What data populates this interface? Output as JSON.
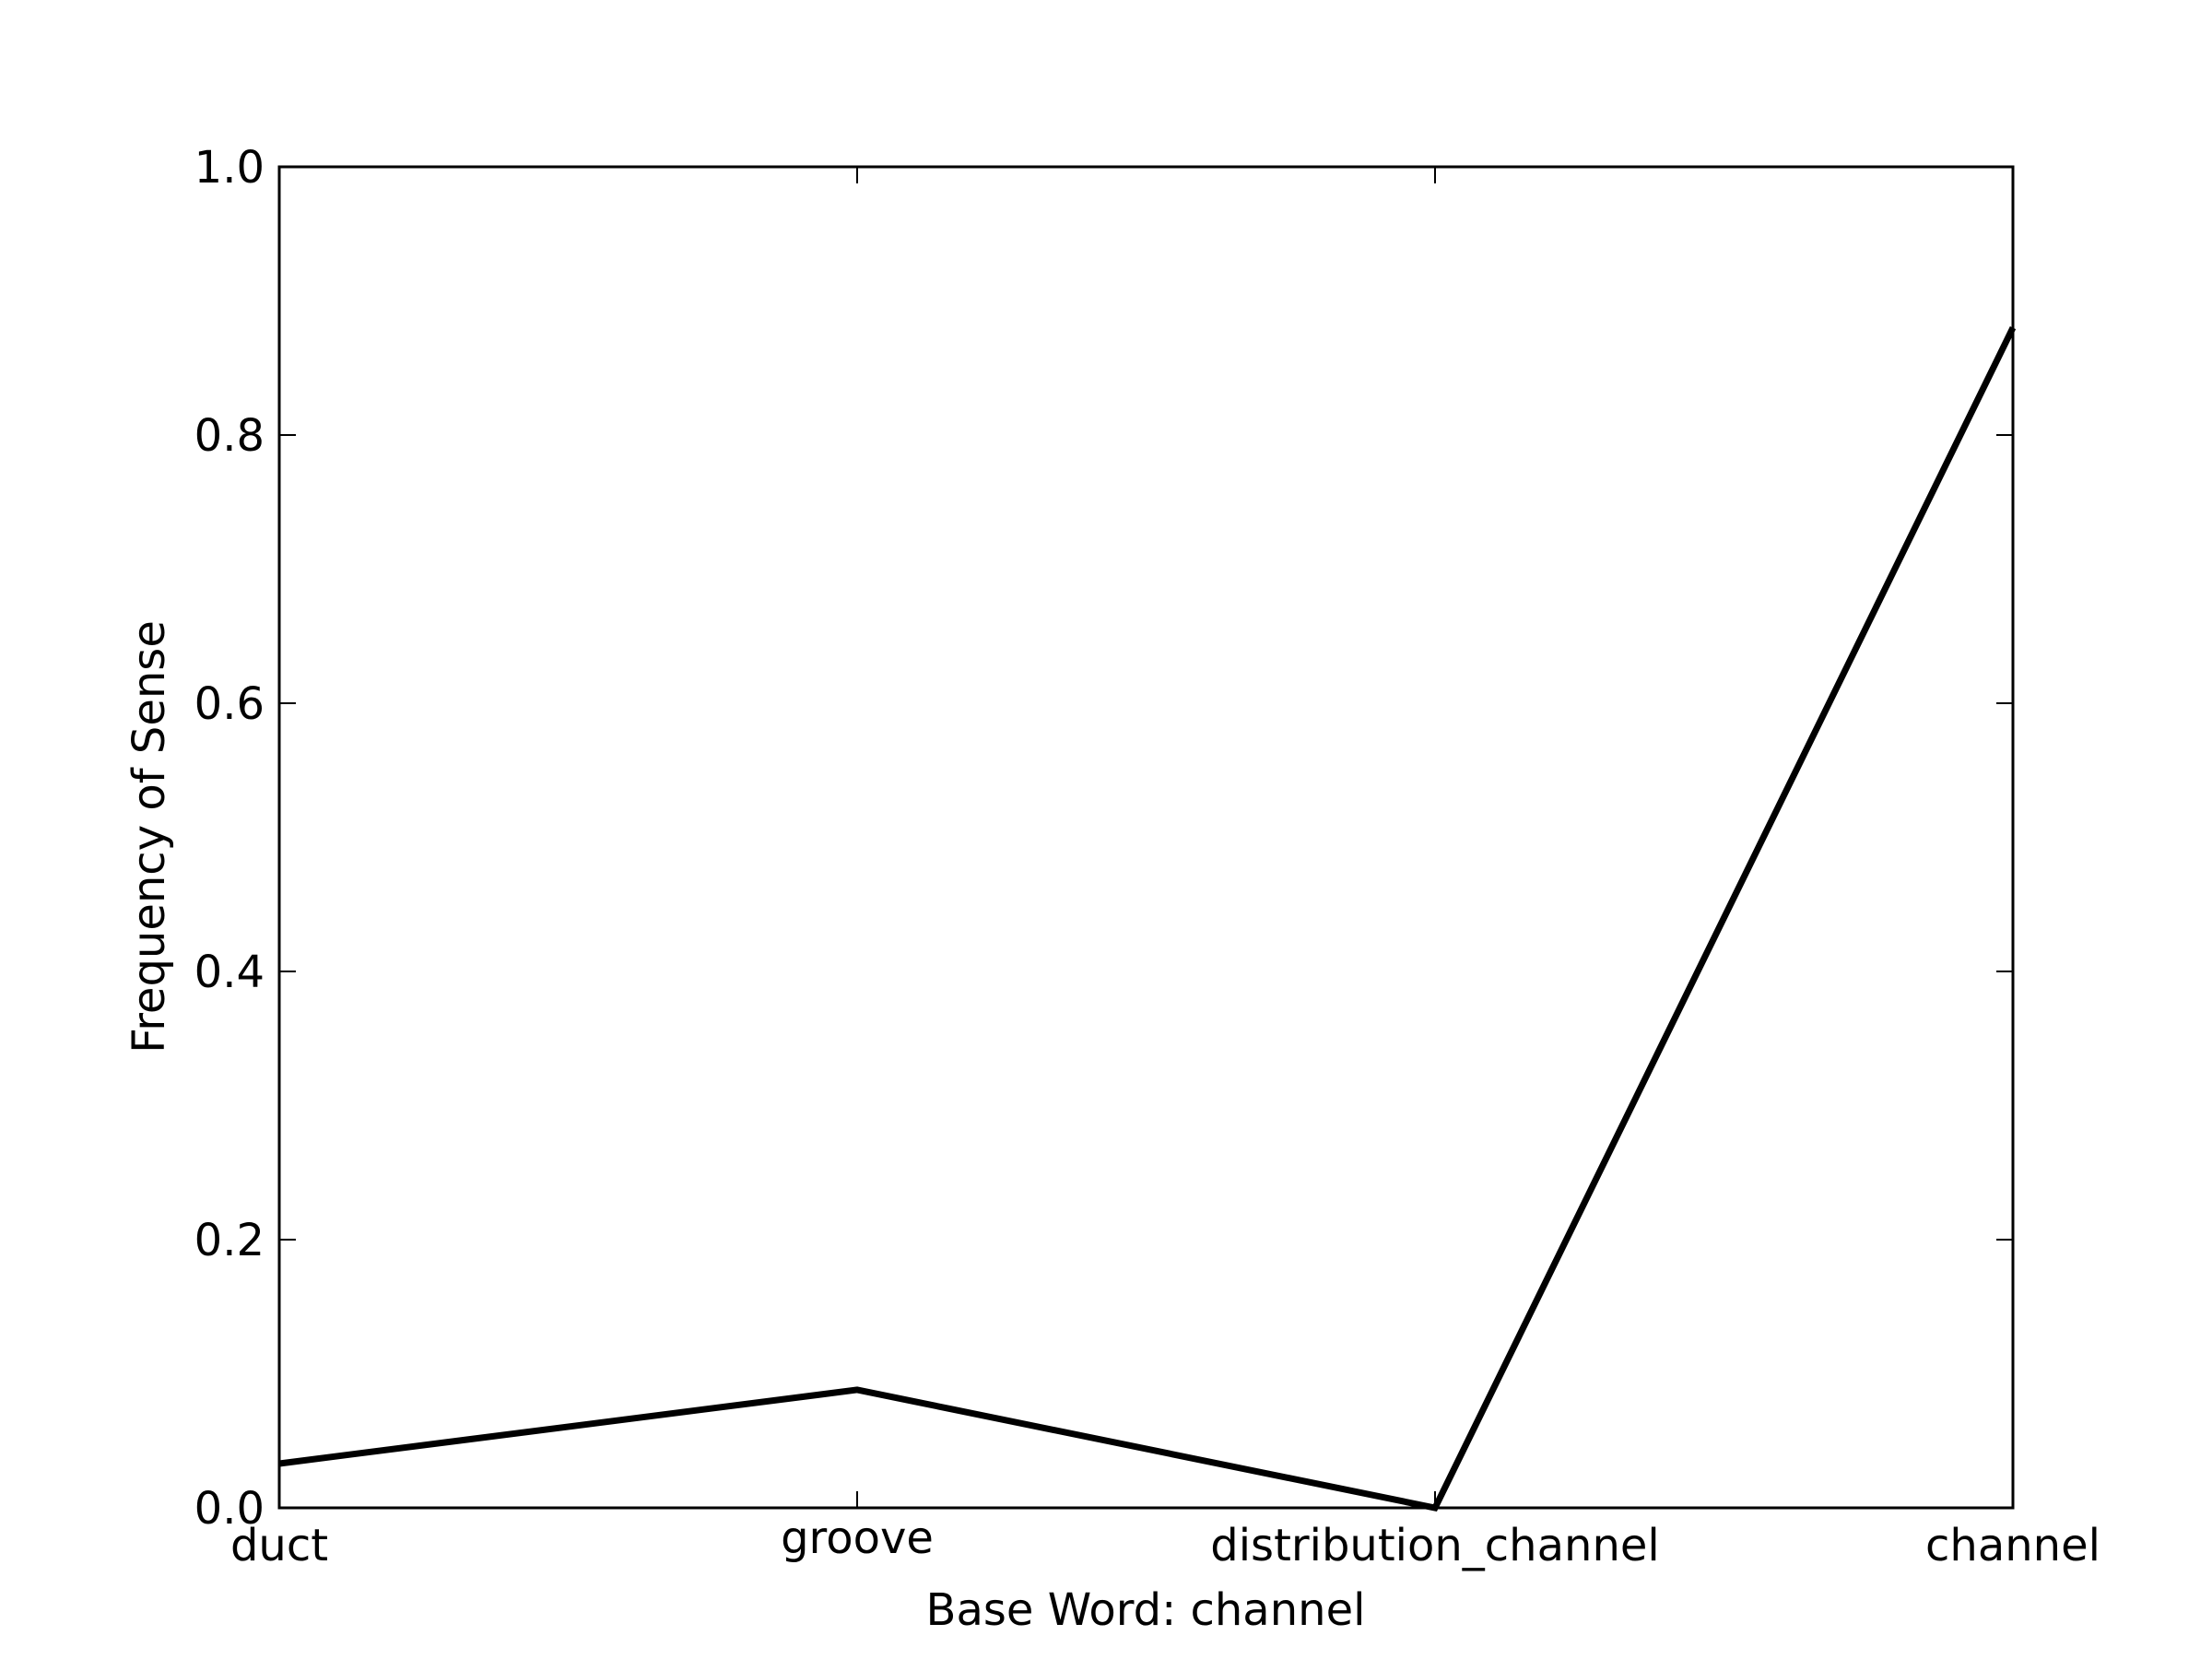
{
  "chart_data": {
    "type": "line",
    "title": "",
    "xlabel": "Base Word: channel",
    "ylabel": "Frequency of Sense",
    "categories": [
      "duct",
      "groove",
      "distribution_channel",
      "channel"
    ],
    "series": [
      {
        "values": [
          0.033,
          0.088,
          0.0,
          0.88
        ],
        "color": "#000000"
      }
    ],
    "ylim": [
      0,
      1.0
    ],
    "yticks": [
      "0.0",
      "0.2",
      "0.4",
      "0.6",
      "0.8",
      "1.0"
    ],
    "grid": false,
    "legend": "none"
  }
}
